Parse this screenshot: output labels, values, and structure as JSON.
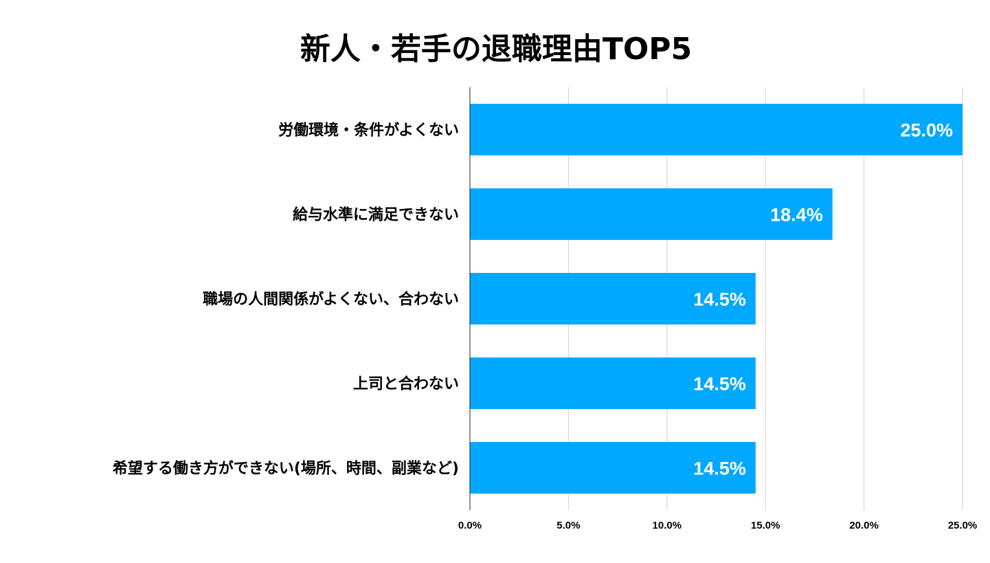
{
  "chart_data": {
    "type": "bar",
    "orientation": "horizontal",
    "title": "新人・若手の退職理由TOP5",
    "categories": [
      "労働環境・条件がよくない",
      "給与水準に満足できない",
      "職場の人間関係がよくない、合わない",
      "上司と合わない",
      "希望する働き方ができない(場所、時間、副業など)"
    ],
    "values": [
      25.0,
      18.4,
      14.5,
      14.5,
      14.5
    ],
    "data_labels": [
      "25.0%",
      "18.4%",
      "14.5%",
      "14.5%",
      "14.5%"
    ],
    "xlim": [
      0,
      25
    ],
    "x_ticks": [
      0,
      5,
      10,
      15,
      20,
      25
    ],
    "x_tick_labels": [
      "0.0%",
      "5.0%",
      "10.0%",
      "15.0%",
      "20.0%",
      "25.0%"
    ],
    "xlabel": "",
    "ylabel": "",
    "grid": true,
    "legend": "none",
    "bar_color": "#00a8ff",
    "label_color": "#ffffff"
  }
}
